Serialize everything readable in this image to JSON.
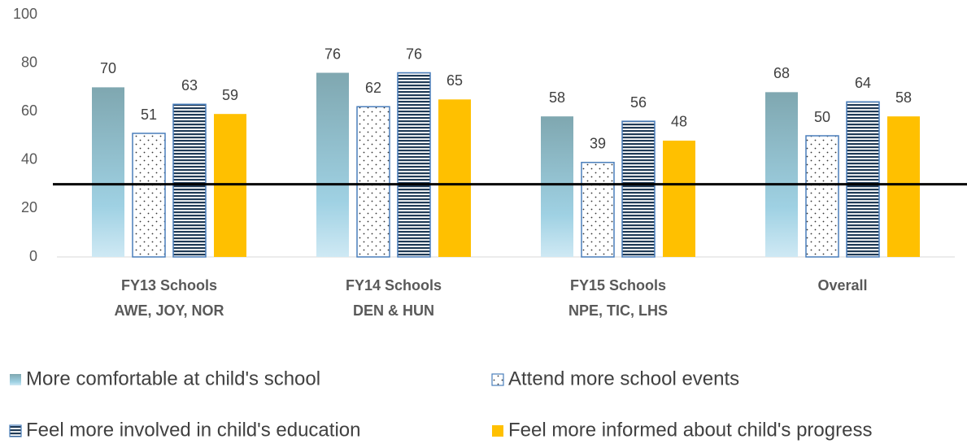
{
  "chart_data": {
    "type": "bar",
    "categories": [
      [
        "FY13 Schools",
        "AWE, JOY, NOR"
      ],
      [
        "FY14 Schools",
        "DEN & HUN"
      ],
      [
        "FY15 Schools",
        "NPE, TIC, LHS"
      ],
      [
        "Overall"
      ]
    ],
    "series": [
      {
        "name": "More comfortable at child's school",
        "color": "#8fb6bf",
        "fill_style": "gradient",
        "values": [
          70,
          76,
          58,
          68
        ]
      },
      {
        "name": "Attend more school events",
        "color": "#4a7ebb",
        "fill_style": "dots",
        "values": [
          51,
          62,
          39,
          50
        ]
      },
      {
        "name": "Feel more involved in child's education",
        "color": "#4a7ebb",
        "fill_style": "stripes",
        "values": [
          63,
          76,
          56,
          64
        ]
      },
      {
        "name": "Feel more informed about child's progress",
        "color": "#ffc000",
        "fill_style": "solid",
        "values": [
          59,
          65,
          48,
          58
        ]
      }
    ],
    "ylim": [
      0,
      100
    ],
    "yticks": [
      0,
      20,
      40,
      60,
      80,
      100
    ],
    "reference_line": 30,
    "legend": "bottom",
    "grid": false
  }
}
